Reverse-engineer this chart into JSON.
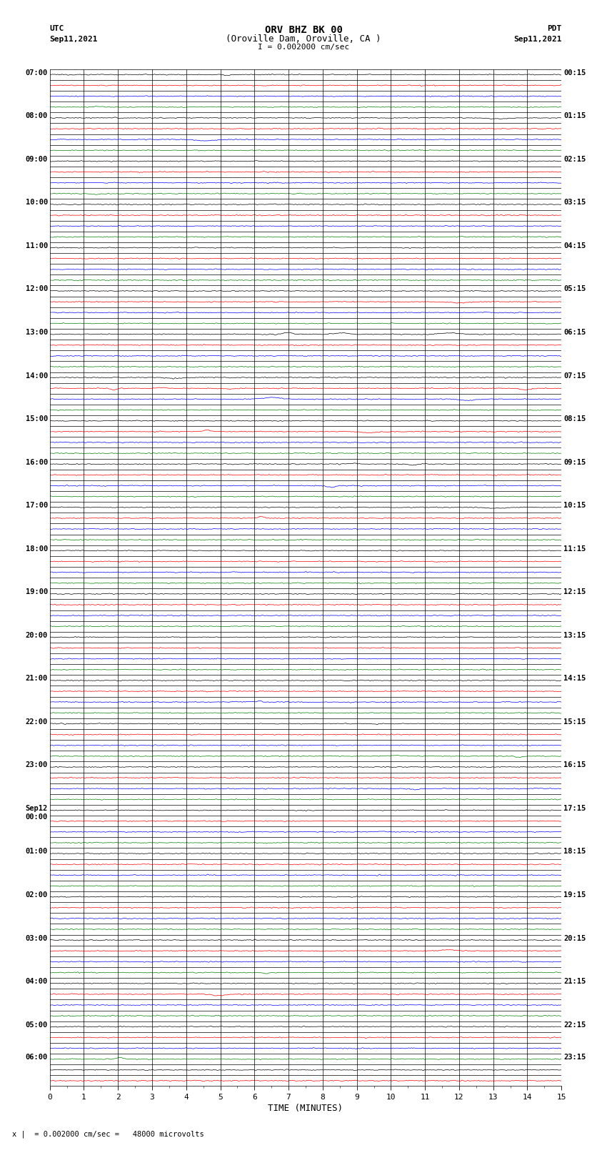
{
  "title_line1": "ORV BHZ BK 00",
  "title_line2": "(Oroville Dam, Oroville, CA )",
  "title_line3": "I = 0.002000 cm/sec",
  "label_left_top": "UTC",
  "label_left_date": "Sep11,2021",
  "label_right_top": "PDT",
  "label_right_date": "Sep11,2021",
  "footer_text": "= 0.002000 cm/sec =   48000 microvolts",
  "footer_prefix": "x |",
  "xlabel": "TIME (MINUTES)",
  "bg_color": "#ffffff",
  "trace_colors": [
    "#000000",
    "#ff0000",
    "#0000ff",
    "#008000"
  ],
  "x_ticks": [
    0,
    1,
    2,
    3,
    4,
    5,
    6,
    7,
    8,
    9,
    10,
    11,
    12,
    13,
    14,
    15
  ],
  "amplitude_scale": 0.08,
  "left_times": [
    "07:00",
    "",
    "",
    "",
    "08:00",
    "",
    "",
    "",
    "09:00",
    "",
    "",
    "",
    "10:00",
    "",
    "",
    "",
    "11:00",
    "",
    "",
    "",
    "12:00",
    "",
    "",
    "",
    "13:00",
    "",
    "",
    "",
    "14:00",
    "",
    "",
    "",
    "15:00",
    "",
    "",
    "",
    "16:00",
    "",
    "",
    "",
    "17:00",
    "",
    "",
    "",
    "18:00",
    "",
    "",
    "",
    "19:00",
    "",
    "",
    "",
    "20:00",
    "",
    "",
    "",
    "21:00",
    "",
    "",
    "",
    "22:00",
    "",
    "",
    "",
    "23:00",
    "",
    "",
    "",
    "Sep12\n00:00",
    "",
    "",
    "",
    "01:00",
    "",
    "",
    "",
    "02:00",
    "",
    "",
    "",
    "03:00",
    "",
    "",
    "",
    "04:00",
    "",
    "",
    "",
    "05:00",
    "",
    "",
    "06:00",
    "",
    ""
  ],
  "right_times": [
    "00:15",
    "",
    "",
    "",
    "01:15",
    "",
    "",
    "",
    "02:15",
    "",
    "",
    "",
    "03:15",
    "",
    "",
    "",
    "04:15",
    "",
    "",
    "",
    "05:15",
    "",
    "",
    "",
    "06:15",
    "",
    "",
    "",
    "07:15",
    "",
    "",
    "",
    "08:15",
    "",
    "",
    "",
    "09:15",
    "",
    "",
    "",
    "10:15",
    "",
    "",
    "",
    "11:15",
    "",
    "",
    "",
    "12:15",
    "",
    "",
    "",
    "13:15",
    "",
    "",
    "",
    "14:15",
    "",
    "",
    "",
    "15:15",
    "",
    "",
    "",
    "16:15",
    "",
    "",
    "",
    "17:15",
    "",
    "",
    "",
    "18:15",
    "",
    "",
    "",
    "19:15",
    "",
    "",
    "",
    "20:15",
    "",
    "",
    "",
    "21:15",
    "",
    "",
    "",
    "22:15",
    "",
    "",
    "23:15",
    "",
    ""
  ]
}
